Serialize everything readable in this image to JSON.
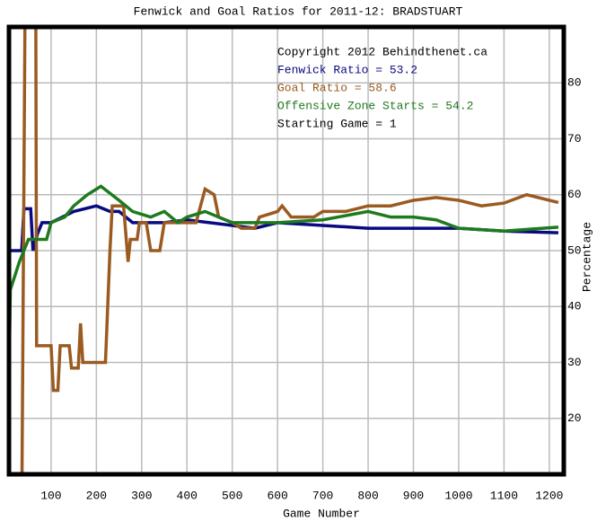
{
  "chart_data": {
    "type": "line",
    "title": "Fenwick and Goal Ratios for 2011-12: BRADSTUART",
    "x_label": "Game Number",
    "y_label": "Percentage",
    "annotations": [
      "Copyright 2012 Behindthenet.ca",
      "Starting Game = 1"
    ],
    "xlim": [
      7,
      1232
    ],
    "ylim": [
      10,
      90
    ],
    "xticks": [
      100,
      200,
      300,
      400,
      500,
      600,
      700,
      800,
      900,
      1000,
      1100,
      1200
    ],
    "yticks": [
      20,
      30,
      40,
      50,
      60,
      70,
      80
    ],
    "grid": true,
    "series": [
      {
        "name": "Fenwick Ratio = 53.2",
        "color": "#0a0a80",
        "x": [
          7,
          35,
          40,
          55,
          60,
          70,
          80,
          100,
          150,
          200,
          230,
          250,
          280,
          350,
          400,
          450,
          500,
          550,
          600,
          700,
          800,
          900,
          1000,
          1100,
          1220
        ],
        "values": [
          50,
          50,
          57.5,
          57.5,
          50,
          53,
          55,
          55,
          57,
          58,
          57,
          57,
          55,
          55,
          55.5,
          55,
          54.5,
          54,
          55,
          54.5,
          54,
          54,
          54,
          53.5,
          53.2
        ]
      },
      {
        "name": "Goal Ratio = 58.6",
        "color": "#9a5a20",
        "x": [
          35,
          43,
          66,
          68,
          100,
          105,
          115,
          120,
          140,
          145,
          160,
          165,
          170,
          200,
          220,
          225,
          230,
          235,
          260,
          270,
          275,
          290,
          295,
          310,
          320,
          340,
          350,
          400,
          420,
          430,
          440,
          460,
          470,
          500,
          520,
          550,
          560,
          600,
          610,
          630,
          680,
          700,
          750,
          800,
          850,
          900,
          950,
          1000,
          1050,
          1100,
          1150,
          1200,
          1220
        ],
        "values": [
          0,
          100,
          100,
          33,
          33,
          25,
          25,
          33,
          33,
          29,
          29,
          37,
          30,
          30,
          30,
          40,
          50,
          58,
          58,
          48,
          52,
          52,
          55,
          55,
          50,
          50,
          55,
          55,
          55,
          58,
          61,
          60,
          56,
          55,
          54,
          54,
          56,
          57,
          58,
          56,
          56,
          57,
          57,
          58,
          58,
          59,
          59.5,
          59,
          58,
          58.5,
          60,
          59,
          58.6
        ]
      },
      {
        "name": "Offensive Zone Starts = 54.2",
        "color": "#1e7a1e",
        "x": [
          7,
          10,
          30,
          50,
          90,
          100,
          130,
          150,
          180,
          210,
          250,
          280,
          320,
          350,
          380,
          400,
          440,
          500,
          600,
          700,
          800,
          850,
          900,
          950,
          1000,
          1100,
          1220
        ],
        "values": [
          27,
          43,
          48,
          52,
          52,
          55,
          56,
          58,
          60,
          61.5,
          59,
          57,
          56,
          57,
          55,
          56,
          57,
          55,
          55,
          55.5,
          57,
          56,
          56,
          55.5,
          54,
          53.5,
          54.2
        ]
      }
    ]
  }
}
